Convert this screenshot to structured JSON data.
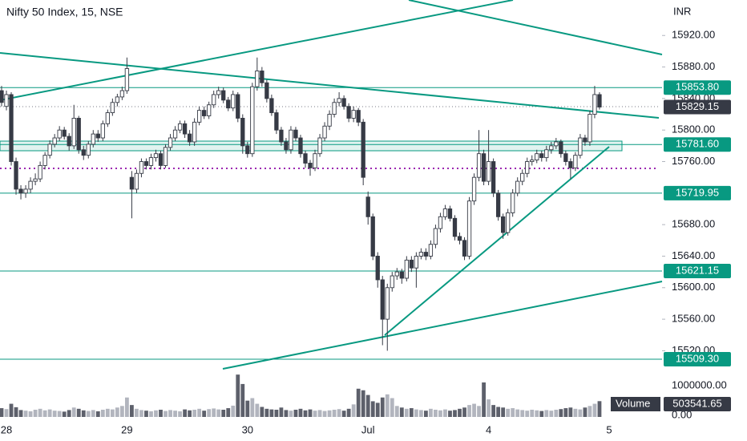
{
  "chart_data": [
    {
      "type": "candlestick",
      "title": "Nifty 50 Index, 15, NSE",
      "y_label": "INR",
      "categories": [
        null,
        "28",
        null,
        null,
        null,
        null,
        null,
        null,
        null,
        null,
        null,
        null,
        null,
        null,
        null,
        null,
        null,
        null,
        null,
        null,
        null,
        null,
        null,
        null,
        null,
        null,
        "29",
        null,
        null,
        null,
        null,
        null,
        null,
        null,
        null,
        null,
        null,
        null,
        null,
        null,
        null,
        null,
        null,
        null,
        null,
        null,
        null,
        null,
        null,
        null,
        null,
        "30",
        null,
        null,
        null,
        null,
        null,
        null,
        null,
        null,
        null,
        null,
        null,
        null,
        null,
        null,
        null,
        null,
        null,
        null,
        null,
        null,
        null,
        null,
        null,
        null,
        "Jul",
        null,
        null,
        null,
        null,
        null,
        null,
        null,
        null,
        null,
        null,
        null,
        null,
        null,
        null,
        null,
        null,
        null,
        null,
        null,
        null,
        null,
        null,
        null,
        null,
        "4",
        null,
        null,
        null,
        null,
        null,
        null,
        null,
        null,
        null,
        null,
        null,
        null,
        null,
        null,
        null,
        null,
        null,
        null,
        null,
        null,
        null,
        null,
        null,
        null,
        "5"
      ],
      "values": [
        [
          15850,
          15856,
          15830,
          15835
        ],
        [
          15830,
          15850,
          15825,
          15845
        ],
        [
          15845,
          15848,
          15755,
          15760
        ],
        [
          15760,
          15765,
          15718,
          15725
        ],
        [
          15725,
          15730,
          15712,
          15720
        ],
        [
          15720,
          15730,
          15714,
          15725
        ],
        [
          15725,
          15740,
          15720,
          15735
        ],
        [
          15735,
          15745,
          15730,
          15738
        ],
        [
          15738,
          15760,
          15734,
          15755
        ],
        [
          15755,
          15772,
          15750,
          15768
        ],
        [
          15768,
          15787,
          15764,
          15782
        ],
        [
          15782,
          15795,
          15778,
          15790
        ],
        [
          15790,
          15805,
          15786,
          15800
        ],
        [
          15800,
          15804,
          15788,
          15792
        ],
        [
          15792,
          15796,
          15774,
          15780
        ],
        [
          15780,
          15832,
          15776,
          15815
        ],
        [
          15815,
          15818,
          15770,
          15775
        ],
        [
          15775,
          15780,
          15762,
          15768
        ],
        [
          15768,
          15786,
          15764,
          15782
        ],
        [
          15782,
          15800,
          15778,
          15795
        ],
        [
          15795,
          15800,
          15785,
          15790
        ],
        [
          15790,
          15812,
          15786,
          15808
        ],
        [
          15808,
          15826,
          15804,
          15822
        ],
        [
          15822,
          15840,
          15818,
          15835
        ],
        [
          15835,
          15846,
          15830,
          15842
        ],
        [
          15842,
          15855,
          15838,
          15850
        ],
        [
          15850,
          15892,
          15846,
          15878
        ],
        [
          15740,
          15748,
          15688,
          15725
        ],
        [
          15725,
          15750,
          15720,
          15745
        ],
        [
          15745,
          15764,
          15740,
          15760
        ],
        [
          15760,
          15764,
          15750,
          15755
        ],
        [
          15755,
          15770,
          15750,
          15765
        ],
        [
          15765,
          15775,
          15760,
          15770
        ],
        [
          15770,
          15774,
          15750,
          15755
        ],
        [
          15755,
          15782,
          15752,
          15778
        ],
        [
          15778,
          15795,
          15774,
          15790
        ],
        [
          15790,
          15805,
          15786,
          15800
        ],
        [
          15800,
          15812,
          15796,
          15808
        ],
        [
          15808,
          15812,
          15790,
          15795
        ],
        [
          15795,
          15800,
          15780,
          15785
        ],
        [
          15785,
          15815,
          15780,
          15810
        ],
        [
          15810,
          15830,
          15806,
          15825
        ],
        [
          15825,
          15830,
          15814,
          15818
        ],
        [
          15818,
          15836,
          15814,
          15832
        ],
        [
          15832,
          15850,
          15828,
          15845
        ],
        [
          15845,
          15855,
          15840,
          15850
        ],
        [
          15850,
          15854,
          15834,
          15838
        ],
        [
          15838,
          15842,
          15824,
          15828
        ],
        [
          15828,
          15850,
          15824,
          15845
        ],
        [
          15845,
          15848,
          15810,
          15815
        ],
        [
          15815,
          15820,
          15770,
          15780
        ],
        [
          15780,
          15785,
          15765,
          15770
        ],
        [
          15770,
          15860,
          15766,
          15855
        ],
        [
          15855,
          15892,
          15850,
          15875
        ],
        [
          15875,
          15880,
          15855,
          15860
        ],
        [
          15860,
          15864,
          15835,
          15840
        ],
        [
          15840,
          15845,
          15818,
          15822
        ],
        [
          15822,
          15826,
          15795,
          15800
        ],
        [
          15800,
          15804,
          15780,
          15785
        ],
        [
          15785,
          15790,
          15770,
          15775
        ],
        [
          15775,
          15805,
          15770,
          15800
        ],
        [
          15800,
          15804,
          15786,
          15790
        ],
        [
          15790,
          15794,
          15765,
          15770
        ],
        [
          15770,
          15774,
          15752,
          15758
        ],
        [
          15758,
          15762,
          15742,
          15752
        ],
        [
          15752,
          15775,
          15748,
          15770
        ],
        [
          15770,
          15795,
          15766,
          15790
        ],
        [
          15790,
          15810,
          15786,
          15805
        ],
        [
          15805,
          15825,
          15800,
          15820
        ],
        [
          15820,
          15840,
          15816,
          15835
        ],
        [
          15835,
          15848,
          15830,
          15840
        ],
        [
          15840,
          15844,
          15826,
          15830
        ],
        [
          15830,
          15834,
          15810,
          15815
        ],
        [
          15815,
          15830,
          15810,
          15825
        ],
        [
          15825,
          15828,
          15805,
          15810
        ],
        [
          15810,
          15814,
          15730,
          15740
        ],
        [
          15715,
          15722,
          15680,
          15690
        ],
        [
          15690,
          15694,
          15635,
          15640
        ],
        [
          15640,
          15645,
          15600,
          15610
        ],
        [
          15610,
          15615,
          15527,
          15560
        ],
        [
          15560,
          15605,
          15520,
          15600
        ],
        [
          15600,
          15620,
          15595,
          15615
        ],
        [
          15615,
          15625,
          15610,
          15620
        ],
        [
          15620,
          15624,
          15605,
          15612
        ],
        [
          15612,
          15640,
          15608,
          15635
        ],
        [
          15635,
          15640,
          15620,
          15625
        ],
        [
          15625,
          15645,
          15600,
          15640
        ],
        [
          15640,
          15650,
          15636,
          15645
        ],
        [
          15645,
          15650,
          15635,
          15640
        ],
        [
          15640,
          15660,
          15636,
          15655
        ],
        [
          15655,
          15680,
          15650,
          15675
        ],
        [
          15675,
          15695,
          15670,
          15690
        ],
        [
          15690,
          15705,
          15686,
          15700
        ],
        [
          15700,
          15704,
          15684,
          15688
        ],
        [
          15688,
          15692,
          15660,
          15665
        ],
        [
          15665,
          15670,
          15655,
          15660
        ],
        [
          15660,
          15664,
          15635,
          15640
        ],
        [
          15640,
          15715,
          15636,
          15710
        ],
        [
          15710,
          15745,
          15705,
          15740
        ],
        [
          15740,
          15800,
          15735,
          15770
        ],
        [
          15770,
          15775,
          15730,
          15735
        ],
        [
          15735,
          15800,
          15730,
          15760
        ],
        [
          15760,
          15764,
          15715,
          15720
        ],
        [
          15720,
          15724,
          15685,
          15690
        ],
        [
          15690,
          15694,
          15662,
          15670
        ],
        [
          15670,
          15700,
          15666,
          15695
        ],
        [
          15695,
          15725,
          15690,
          15720
        ],
        [
          15720,
          15740,
          15716,
          15735
        ],
        [
          15735,
          15750,
          15730,
          15745
        ],
        [
          15745,
          15765,
          15740,
          15760
        ],
        [
          15760,
          15768,
          15755,
          15762
        ],
        [
          15762,
          15775,
          15758,
          15770
        ],
        [
          15770,
          15774,
          15760,
          15765
        ],
        [
          15765,
          15780,
          15760,
          15775
        ],
        [
          15775,
          15785,
          15770,
          15780
        ],
        [
          15780,
          15790,
          15776,
          15785
        ],
        [
          15785,
          15788,
          15765,
          15770
        ],
        [
          15770,
          15774,
          15755,
          15760
        ],
        [
          15760,
          15764,
          15738,
          15752
        ],
        [
          15752,
          15772,
          15748,
          15768
        ],
        [
          15768,
          15795,
          15764,
          15790
        ],
        [
          15790,
          15794,
          15780,
          15785
        ],
        [
          15785,
          15825,
          15780,
          15820
        ],
        [
          15820,
          15856,
          15815,
          15845
        ],
        [
          15845,
          15848,
          15826,
          15829.15
        ],
        null,
        null
      ],
      "up_color": "#ffffff",
      "down_color": "#363a45",
      "outline_color": "#363a45",
      "ylim": [
        15495,
        15965
      ],
      "yticks": [
        {
          "value": 15520,
          "label": "15520.00"
        },
        {
          "value": 15560,
          "label": "15560.00"
        },
        {
          "value": 15600,
          "label": "15600.00"
        },
        {
          "value": 15640,
          "label": "15640.00"
        },
        {
          "value": 15680,
          "label": "15680.00"
        },
        {
          "value": 15760,
          "label": "15760.00"
        },
        {
          "value": 15800,
          "label": "15800.00"
        },
        {
          "value": 15840,
          "label": "15840.00"
        },
        {
          "value": 15880,
          "label": "15880.00"
        },
        {
          "value": 15920,
          "label": "15920.00"
        }
      ],
      "levels": [
        {
          "value": 15853.8,
          "label": "15853.80"
        },
        {
          "value": 15781.6,
          "label": "15781.60"
        },
        {
          "value": 15719.95,
          "label": "15719.95"
        },
        {
          "value": 15621.15,
          "label": "15621.15"
        },
        {
          "value": 15509.3,
          "label": "15509.30"
        }
      ],
      "level_color": "#089981",
      "last_color": "#363a45"
    },
    {
      "type": "bar",
      "series": [
        {
          "name": "Volume",
          "values": [
            280000,
            250000,
            420000,
            310000,
            220000,
            200000,
            180000,
            230000,
            260000,
            210000,
            240000,
            200000,
            190000,
            170000,
            220000,
            300000,
            260000,
            210000,
            190000,
            220000,
            180000,
            230000,
            260000,
            240000,
            300000,
            350000,
            620000,
            380000,
            260000,
            220000,
            200000,
            180000,
            210000,
            230000,
            190000,
            220000,
            200000,
            180000,
            240000,
            210000,
            230000,
            260000,
            200000,
            250000,
            270000,
            240000,
            230000,
            280000,
            360000,
            1350000,
            1050000,
            520000,
            600000,
            420000,
            320000,
            260000,
            240000,
            230000,
            300000,
            220000,
            200000,
            230000,
            260000,
            210000,
            240000,
            200000,
            220000,
            190000,
            210000,
            230000,
            250000,
            200000,
            260000,
            400000,
            900000,
            850000,
            700000,
            500000,
            450000,
            620000,
            720000,
            600000,
            350000,
            300000,
            260000,
            280000,
            240000,
            220000,
            200000,
            260000,
            230000,
            210000,
            240000,
            200000,
            220000,
            260000,
            300000,
            380000,
            420000,
            350000,
            1100000,
            560000,
            380000,
            320000,
            300000,
            260000,
            280000,
            240000,
            220000,
            200000,
            230000,
            210000,
            190000,
            220000,
            200000,
            230000,
            250000,
            280000,
            300000,
            260000,
            240000,
            300000,
            350000,
            420000,
            503541.65,
            null,
            null
          ]
        }
      ],
      "up_color": "#b2b5be",
      "down_color": "#5d606b",
      "ylim": [
        0,
        1380000
      ],
      "yticks": [
        {
          "value": 0,
          "label": "0.00"
        },
        {
          "value": 1000000,
          "label": "1000000.00"
        }
      ]
    }
  ]
}
